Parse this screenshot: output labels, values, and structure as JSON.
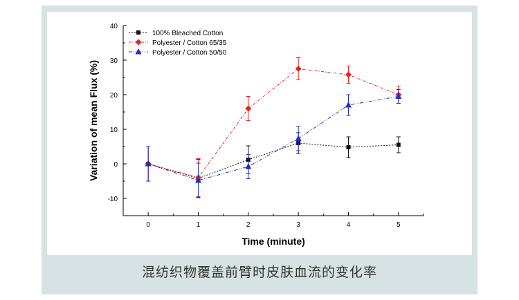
{
  "caption": "混纺织物覆盖前臂时皮肤血流的变化率",
  "colors": {
    "panel_bg": "#d6e2e3",
    "series_black": "#111111",
    "series_red": "#e8231e",
    "series_blue": "#1f2fbf"
  },
  "chart_data": {
    "type": "line",
    "xlabel": "Time (minute)",
    "ylabel": "Variation of mean Flux (%)",
    "xlim": [
      -0.5,
      5.5
    ],
    "ylim": [
      -15,
      40
    ],
    "xticks": [
      0,
      1,
      2,
      3,
      4,
      5
    ],
    "yticks": [
      -10,
      0,
      10,
      20,
      30,
      40
    ],
    "legend_position": "top-left",
    "grid": false,
    "series": [
      {
        "name": "100% Bleached Cotton",
        "color": "#111111",
        "marker": "square",
        "x": [
          0,
          1,
          2,
          3,
          4,
          5
        ],
        "y": [
          0,
          -4.2,
          1.2,
          6.0,
          4.8,
          5.5
        ],
        "err": [
          5.0,
          5.5,
          4.0,
          3.0,
          3.0,
          2.3
        ]
      },
      {
        "name": "Polyester / Cotton 65/35",
        "color": "#e8231e",
        "marker": "diamond",
        "x": [
          0,
          1,
          2,
          3,
          4,
          5
        ],
        "y": [
          0,
          -4.0,
          16.0,
          27.5,
          25.8,
          20.0
        ],
        "err": [
          5.0,
          5.5,
          3.5,
          3.2,
          2.5,
          2.5
        ]
      },
      {
        "name": "Polyester / Cotton 50/50",
        "color": "#1f2fbf",
        "marker": "triangle",
        "x": [
          0,
          1,
          2,
          3,
          4,
          5
        ],
        "y": [
          0,
          -4.8,
          -0.8,
          7.3,
          17.0,
          19.5
        ],
        "err": [
          5.0,
          5.0,
          3.5,
          3.5,
          3.0,
          2.0
        ]
      }
    ]
  }
}
